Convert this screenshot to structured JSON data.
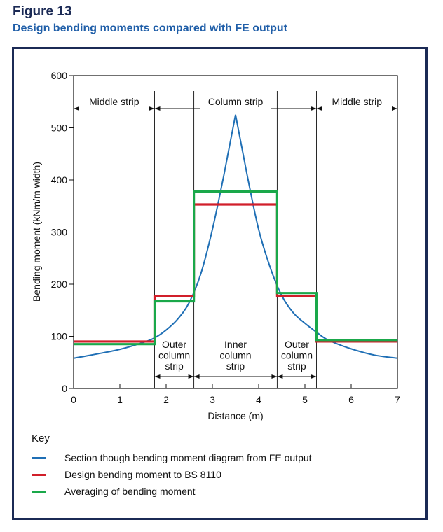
{
  "figure": {
    "label": "Figure 13",
    "title": "Design bending moments compared with FE output"
  },
  "chart_data": {
    "type": "line",
    "xlabel": "Distance  (m)",
    "ylabel": "Bending  moment  (kNm/m width)",
    "xlim": [
      0,
      7
    ],
    "ylim": [
      0,
      600
    ],
    "x_ticks": [
      0,
      1,
      2,
      3,
      4,
      5,
      6,
      7
    ],
    "y_ticks": [
      0,
      100,
      200,
      300,
      400,
      500,
      600
    ],
    "strip_boundaries": [
      1.75,
      2.6,
      4.4,
      5.25
    ],
    "zones_top": [
      {
        "label": "Middle  strip",
        "from": 0,
        "to": 1.75
      },
      {
        "label": "Column  strip",
        "from": 1.75,
        "to": 5.25
      },
      {
        "label": "Middle  strip",
        "from": 5.25,
        "to": 7
      }
    ],
    "zones_bottom": [
      {
        "lines": [
          "Outer",
          "column",
          "strip"
        ],
        "from": 1.75,
        "to": 2.6
      },
      {
        "lines": [
          "Inner",
          "column",
          "strip"
        ],
        "from": 2.6,
        "to": 4.4
      },
      {
        "lines": [
          "Outer",
          "column",
          "strip"
        ],
        "from": 4.4,
        "to": 5.25
      }
    ],
    "series": [
      {
        "name": "Section though bending moment diagram from FE output",
        "color": "#1f6fb5",
        "kind": "curve",
        "x": [
          0,
          0.5,
          1.0,
          1.5,
          1.75,
          2.0,
          2.25,
          2.5,
          2.75,
          3.0,
          3.25,
          3.5,
          3.75,
          4.0,
          4.25,
          4.5,
          4.75,
          5.0,
          5.25,
          5.5,
          6.0,
          6.5,
          7.0
        ],
        "y": [
          58,
          66,
          75,
          88,
          97,
          112,
          133,
          165,
          220,
          305,
          410,
          525,
          410,
          305,
          232,
          178,
          145,
          125,
          108,
          93,
          76,
          64,
          58
        ]
      },
      {
        "name": "Design bending moment to BS 8110",
        "color": "#d11f2a",
        "kind": "step",
        "x": [
          0,
          1.75,
          1.75,
          2.6,
          2.6,
          4.4,
          4.4,
          5.25,
          5.25,
          7
        ],
        "y": [
          90,
          90,
          177,
          177,
          353,
          353,
          177,
          177,
          90,
          90
        ]
      },
      {
        "name": "Averaging of bending moment",
        "color": "#1aa84a",
        "kind": "step",
        "x": [
          0,
          1.75,
          1.75,
          2.6,
          2.6,
          4.4,
          4.4,
          5.25,
          5.25,
          7
        ],
        "y": [
          85,
          85,
          167,
          167,
          378,
          378,
          183,
          183,
          93,
          93
        ]
      }
    ]
  },
  "key": {
    "title": "Key",
    "items": [
      {
        "label": "Section though bending moment diagram from FE output",
        "color": "#1f6fb5"
      },
      {
        "label": "Design bending moment to BS 8110",
        "color": "#d11f2a"
      },
      {
        "label": "Averaging of bending moment",
        "color": "#1aa84a"
      }
    ]
  }
}
